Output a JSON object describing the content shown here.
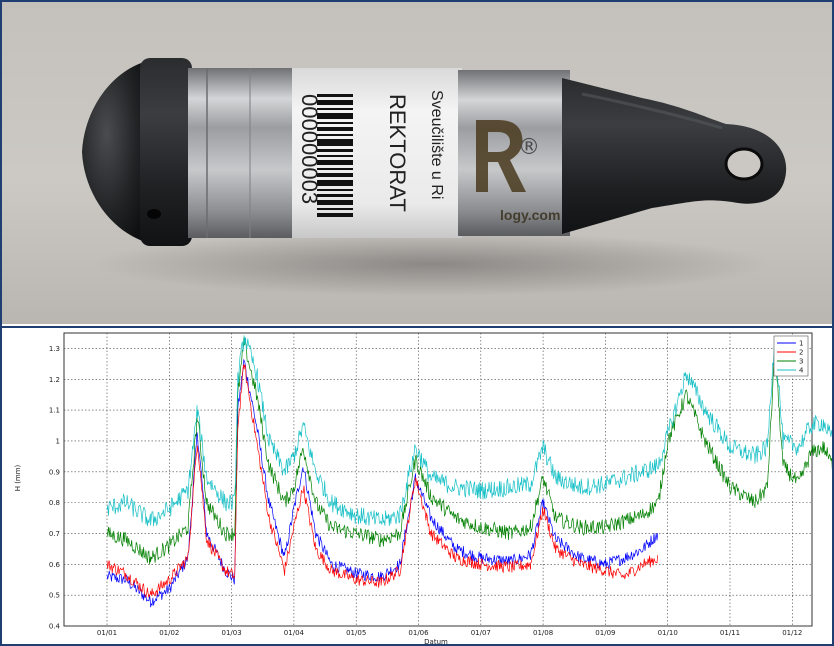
{
  "photo": {
    "label_lines": [
      "Sveučilište u Ri",
      "REKTORAT",
      "000000003"
    ],
    "logo_mark": "®",
    "logo_text": "logy.com",
    "colors": {
      "cap": "#202224",
      "steel": "#a8aaac",
      "label": "#f2f2f2"
    }
  },
  "chart_data": {
    "type": "line",
    "xlabel": "Datum",
    "ylabel": "H (mm)",
    "x_ticks": [
      "01/01",
      "01/02",
      "01/03",
      "01/04",
      "01/05",
      "01/06",
      "01/07",
      "01/08",
      "01/09",
      "01/10",
      "01/11",
      "01/12"
    ],
    "y_ticks": [
      "0.4",
      "0.5",
      "0.6",
      "0.7",
      "0.8",
      "0.9",
      "1",
      "1.1",
      "1.2",
      "1.3"
    ],
    "ylim": [
      0.4,
      1.35
    ],
    "grid": true,
    "legend_position": "top-right",
    "legend": [
      "1",
      "2",
      "3",
      "4"
    ],
    "series": [
      {
        "name": "1",
        "color": "#0000ff",
        "noise": 0.02,
        "points": [
          [
            0,
            0.56
          ],
          [
            0.3,
            0.55
          ],
          [
            0.7,
            0.48
          ],
          [
            1.0,
            0.52
          ],
          [
            1.3,
            0.62
          ],
          [
            1.45,
            1.03
          ],
          [
            1.6,
            0.7
          ],
          [
            1.9,
            0.58
          ],
          [
            2.05,
            0.55
          ],
          [
            2.1,
            1.1
          ],
          [
            2.2,
            1.26
          ],
          [
            2.4,
            1.05
          ],
          [
            2.6,
            0.8
          ],
          [
            2.85,
            0.62
          ],
          [
            3.0,
            0.78
          ],
          [
            3.15,
            0.92
          ],
          [
            3.35,
            0.7
          ],
          [
            3.6,
            0.6
          ],
          [
            4.0,
            0.57
          ],
          [
            4.4,
            0.56
          ],
          [
            4.7,
            0.6
          ],
          [
            4.95,
            0.88
          ],
          [
            5.2,
            0.75
          ],
          [
            5.6,
            0.65
          ],
          [
            6.0,
            0.62
          ],
          [
            6.5,
            0.61
          ],
          [
            6.8,
            0.63
          ],
          [
            7.0,
            0.8
          ],
          [
            7.2,
            0.68
          ],
          [
            7.6,
            0.62
          ],
          [
            8.0,
            0.6
          ],
          [
            8.3,
            0.62
          ],
          [
            8.6,
            0.65
          ],
          [
            8.85,
            0.7
          ]
        ]
      },
      {
        "name": "2",
        "color": "#ff0000",
        "noise": 0.02,
        "points": [
          [
            0,
            0.6
          ],
          [
            0.3,
            0.57
          ],
          [
            0.7,
            0.5
          ],
          [
            1.0,
            0.55
          ],
          [
            1.3,
            0.62
          ],
          [
            1.45,
            1.0
          ],
          [
            1.6,
            0.68
          ],
          [
            1.9,
            0.58
          ],
          [
            2.05,
            0.56
          ],
          [
            2.1,
            1.05
          ],
          [
            2.2,
            1.25
          ],
          [
            2.4,
            1.0
          ],
          [
            2.6,
            0.75
          ],
          [
            2.85,
            0.58
          ],
          [
            3.0,
            0.72
          ],
          [
            3.15,
            0.85
          ],
          [
            3.35,
            0.65
          ],
          [
            3.6,
            0.58
          ],
          [
            4.0,
            0.55
          ],
          [
            4.4,
            0.54
          ],
          [
            4.7,
            0.58
          ],
          [
            4.95,
            0.88
          ],
          [
            5.2,
            0.7
          ],
          [
            5.6,
            0.62
          ],
          [
            6.0,
            0.6
          ],
          [
            6.5,
            0.59
          ],
          [
            6.8,
            0.6
          ],
          [
            7.0,
            0.78
          ],
          [
            7.2,
            0.65
          ],
          [
            7.6,
            0.6
          ],
          [
            8.0,
            0.58
          ],
          [
            8.3,
            0.56
          ],
          [
            8.6,
            0.6
          ],
          [
            8.85,
            0.62
          ]
        ]
      },
      {
        "name": "3",
        "color": "#008000",
        "noise": 0.025,
        "points": [
          [
            0,
            0.7
          ],
          [
            0.3,
            0.68
          ],
          [
            0.7,
            0.62
          ],
          [
            1.0,
            0.66
          ],
          [
            1.3,
            0.72
          ],
          [
            1.45,
            1.08
          ],
          [
            1.6,
            0.8
          ],
          [
            1.9,
            0.7
          ],
          [
            2.05,
            0.7
          ],
          [
            2.1,
            1.15
          ],
          [
            2.2,
            1.32
          ],
          [
            2.4,
            1.15
          ],
          [
            2.6,
            0.92
          ],
          [
            2.85,
            0.8
          ],
          [
            3.0,
            0.85
          ],
          [
            3.15,
            0.98
          ],
          [
            3.35,
            0.8
          ],
          [
            3.6,
            0.72
          ],
          [
            4.0,
            0.7
          ],
          [
            4.4,
            0.68
          ],
          [
            4.7,
            0.7
          ],
          [
            4.95,
            0.94
          ],
          [
            5.2,
            0.82
          ],
          [
            5.6,
            0.75
          ],
          [
            6.0,
            0.72
          ],
          [
            6.5,
            0.7
          ],
          [
            6.8,
            0.72
          ],
          [
            7.0,
            0.88
          ],
          [
            7.2,
            0.75
          ],
          [
            7.6,
            0.72
          ],
          [
            8.0,
            0.72
          ],
          [
            8.3,
            0.74
          ],
          [
            8.6,
            0.76
          ],
          [
            8.85,
            0.8
          ],
          [
            9.0,
            1.0
          ],
          [
            9.3,
            1.15
          ],
          [
            9.6,
            1.0
          ],
          [
            10.0,
            0.85
          ],
          [
            10.4,
            0.8
          ],
          [
            10.6,
            0.85
          ],
          [
            10.72,
            1.3
          ],
          [
            10.85,
            0.92
          ],
          [
            11.1,
            0.86
          ],
          [
            11.3,
            0.96
          ],
          [
            11.5,
            0.98
          ],
          [
            11.7,
            0.9
          ],
          [
            11.9,
            1.05
          ],
          [
            12.0,
            1.18
          ],
          [
            12.1,
            0.98
          ]
        ]
      },
      {
        "name": "4",
        "color": "#17c0c6",
        "noise": 0.03,
        "points": [
          [
            0,
            0.78
          ],
          [
            0.3,
            0.8
          ],
          [
            0.7,
            0.74
          ],
          [
            1.0,
            0.78
          ],
          [
            1.3,
            0.84
          ],
          [
            1.45,
            1.1
          ],
          [
            1.6,
            0.88
          ],
          [
            1.9,
            0.8
          ],
          [
            2.05,
            0.8
          ],
          [
            2.1,
            1.2
          ],
          [
            2.2,
            1.34
          ],
          [
            2.4,
            1.22
          ],
          [
            2.6,
            1.0
          ],
          [
            2.85,
            0.9
          ],
          [
            3.0,
            0.95
          ],
          [
            3.15,
            1.05
          ],
          [
            3.35,
            0.9
          ],
          [
            3.6,
            0.8
          ],
          [
            4.0,
            0.76
          ],
          [
            4.4,
            0.74
          ],
          [
            4.7,
            0.76
          ],
          [
            4.95,
            0.98
          ],
          [
            5.2,
            0.88
          ],
          [
            5.6,
            0.85
          ],
          [
            6.0,
            0.84
          ],
          [
            6.5,
            0.85
          ],
          [
            6.8,
            0.86
          ],
          [
            7.0,
            0.98
          ],
          [
            7.2,
            0.88
          ],
          [
            7.6,
            0.85
          ],
          [
            8.0,
            0.86
          ],
          [
            8.3,
            0.88
          ],
          [
            8.6,
            0.9
          ],
          [
            8.85,
            0.92
          ],
          [
            9.0,
            1.02
          ],
          [
            9.3,
            1.22
          ],
          [
            9.6,
            1.1
          ],
          [
            10.0,
            0.98
          ],
          [
            10.4,
            0.95
          ],
          [
            10.6,
            0.98
          ],
          [
            10.72,
            1.35
          ],
          [
            10.85,
            1.0
          ],
          [
            11.1,
            0.98
          ],
          [
            11.3,
            1.05
          ],
          [
            11.5,
            1.06
          ],
          [
            11.7,
            0.98
          ],
          [
            11.9,
            1.1
          ],
          [
            12.0,
            1.22
          ],
          [
            12.1,
            1.05
          ]
        ]
      }
    ]
  }
}
